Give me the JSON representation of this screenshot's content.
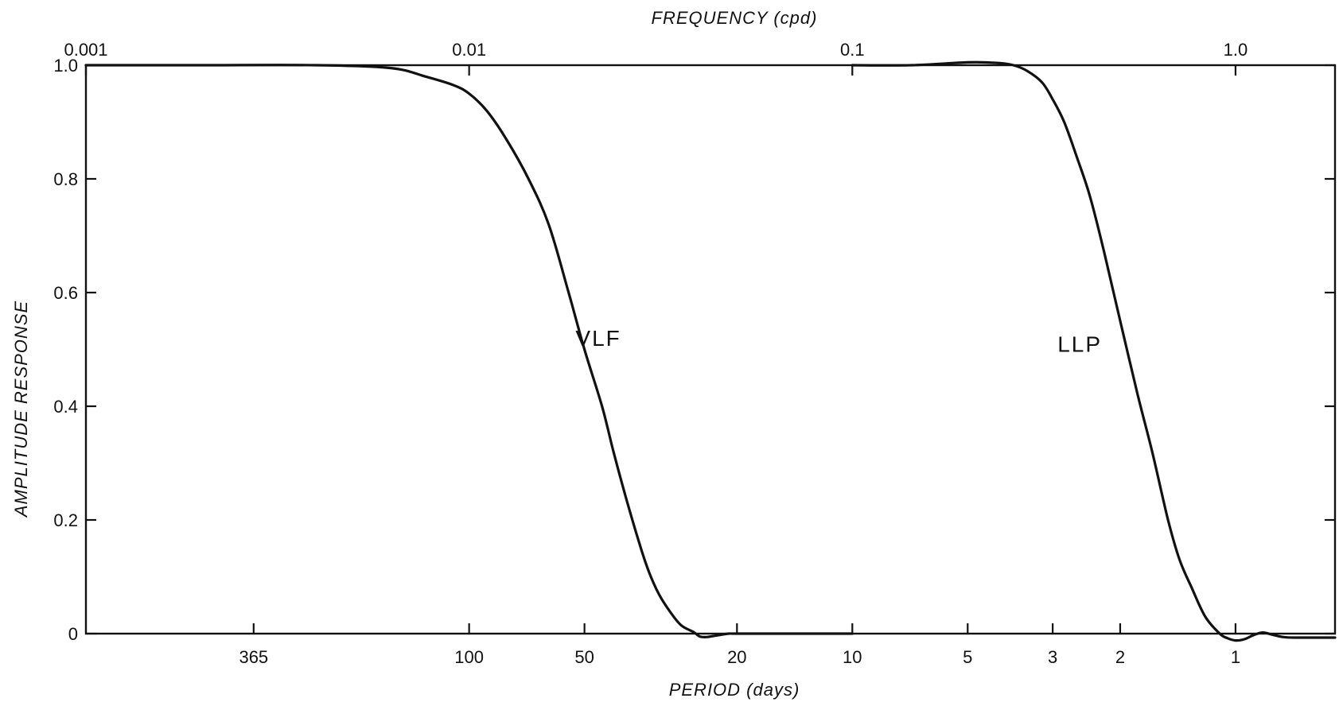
{
  "chart_data": {
    "type": "line",
    "title": "",
    "xlabel": "PERIOD (days)",
    "x2label": "FREQUENCY (cpd)",
    "ylabel": "AMPLITUDE RESPONSE",
    "x_scale": "log",
    "x_unit": "days",
    "xlim": [
      1000,
      0.55
    ],
    "ylim": [
      0,
      1.0
    ],
    "grid": false,
    "legend": "none (curves labeled inline)",
    "x_ticks": [
      {
        "value": 365,
        "label": "365"
      },
      {
        "value": 100,
        "label": "100"
      },
      {
        "value": 50,
        "label": "50"
      },
      {
        "value": 20,
        "label": "20"
      },
      {
        "value": 10,
        "label": "10"
      },
      {
        "value": 5,
        "label": "5"
      },
      {
        "value": 3,
        "label": "3"
      },
      {
        "value": 2,
        "label": "2"
      },
      {
        "value": 1,
        "label": "1"
      }
    ],
    "x2_ticks": [
      {
        "value": 0.001,
        "label": "0.001"
      },
      {
        "value": 0.01,
        "label": "0.01"
      },
      {
        "value": 0.1,
        "label": "0.1"
      },
      {
        "value": 1.0,
        "label": "1.0"
      }
    ],
    "y_ticks": [
      {
        "value": 0,
        "label": "0"
      },
      {
        "value": 0.2,
        "label": "0.2"
      },
      {
        "value": 0.4,
        "label": "0.4"
      },
      {
        "value": 0.6,
        "label": "0.6"
      },
      {
        "value": 0.8,
        "label": "0.8"
      },
      {
        "value": 1.0,
        "label": "1.0"
      }
    ],
    "series": [
      {
        "name": "VLF",
        "x": [
          1000,
          500,
          250,
          160,
          130,
          110,
          100,
          90,
          80,
          70,
          62,
          55,
          50,
          45,
          42,
          39,
          36,
          34,
          32,
          30,
          28,
          26,
          25,
          24,
          23,
          22,
          21,
          20,
          15,
          10
        ],
        "y": [
          1.0,
          1.0,
          1.0,
          0.995,
          0.98,
          0.965,
          0.95,
          0.92,
          0.87,
          0.8,
          0.72,
          0.6,
          0.5,
          0.4,
          0.32,
          0.24,
          0.16,
          0.11,
          0.07,
          0.04,
          0.015,
          0.003,
          -0.005,
          -0.006,
          -0.004,
          -0.002,
          0.0,
          0.0,
          0.0,
          0.0
        ]
      },
      {
        "name": "LLP",
        "x": [
          10,
          7,
          5,
          4.2,
          3.8,
          3.5,
          3.2,
          3.0,
          2.8,
          2.6,
          2.4,
          2.2,
          2.0,
          1.8,
          1.65,
          1.5,
          1.4,
          1.3,
          1.2,
          1.1,
          1.05,
          1.0,
          0.95,
          0.9,
          0.85,
          0.8,
          0.75,
          0.7,
          0.6,
          0.55
        ],
        "y": [
          1.0,
          1.0,
          1.005,
          1.004,
          1.0,
          0.99,
          0.97,
          0.94,
          0.9,
          0.84,
          0.77,
          0.67,
          0.55,
          0.42,
          0.32,
          0.2,
          0.13,
          0.08,
          0.03,
          0.0,
          -0.008,
          -0.012,
          -0.01,
          -0.003,
          0.002,
          -0.002,
          -0.006,
          -0.007,
          -0.007,
          -0.007
        ]
      }
    ],
    "annotations": [
      {
        "text": "VLF",
        "x": 46,
        "y": 0.52
      },
      {
        "text": "LLP",
        "x": 2.55,
        "y": 0.51
      }
    ]
  }
}
